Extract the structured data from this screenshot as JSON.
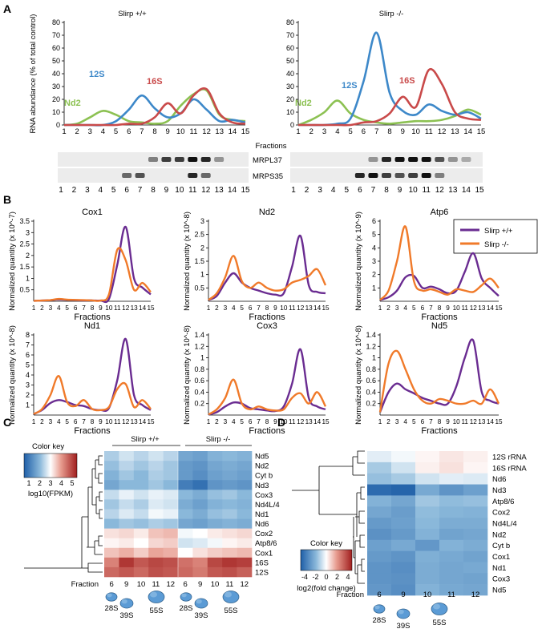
{
  "panel_letters": [
    "A",
    "B",
    "C",
    "D"
  ],
  "colors": {
    "wt_purple": "#6a2c91",
    "ko_orange": "#f07a2a",
    "nd2_green": "#8cc152",
    "s12_blue": "#3d88c9",
    "s16_red": "#c94a4a"
  },
  "panelA": {
    "charts": [
      {
        "title": "Slirp +/+",
        "ylabel": "RNA abundance (% of total control)",
        "xlabel": "Fractions",
        "peak_labels": {
          "nd2": "Nd2",
          "s12": "12S",
          "s16": "16S"
        }
      },
      {
        "title": "Slirp -/-",
        "xlabel": "Fractions",
        "peak_labels": {
          "nd2": "Nd2",
          "s12": "12S",
          "s16": "16S"
        }
      }
    ],
    "blot_labels": [
      "MRPL37",
      "MRPS35"
    ],
    "fraction_ticks": [
      "1",
      "2",
      "3",
      "4",
      "5",
      "6",
      "7",
      "8",
      "9",
      "10",
      "11",
      "12",
      "13",
      "14",
      "15"
    ]
  },
  "panelB": {
    "legend": {
      "wt": "Slirp +/+",
      "ko": "Slirp -/-"
    },
    "fractions_label": "Fractions",
    "ylabels": [
      "Normalized quantity (x 10^-7)",
      "Normalized quantity (x 10^-8)",
      "Normalized quantity (x 10^-9)",
      "Normalized quantity (x 10^-8)",
      "Normalized quantity (x 10^-8)",
      "Normalized quantity (x 10^-8)"
    ],
    "titles": [
      "Cox1",
      "Nd2",
      "Atp6",
      "Nd1",
      "Cox3",
      "Nd5"
    ]
  },
  "panelC": {
    "groups": [
      "Slirp +/+",
      "Slirp -/-"
    ],
    "key_title": "Color key",
    "key_axis": "log10(FPKM)",
    "key_ticks": [
      "1",
      "2",
      "3",
      "4",
      "5"
    ],
    "rows": [
      "Nd5",
      "Nd2",
      "Cyt b",
      "Nd3",
      "Cox3",
      "Nd4L/4",
      "Nd1",
      "Nd6",
      "Cox2",
      "Atp8/6",
      "Cox1",
      "16S",
      "12S"
    ],
    "fraction_label": "Fraction",
    "fractions": [
      "6",
      "9",
      "10",
      "11",
      "12",
      "6",
      "9",
      "10",
      "11",
      "12"
    ],
    "ribosomes": [
      "28S",
      "39S",
      "55S",
      "28S",
      "39S",
      "55S"
    ]
  },
  "panelD": {
    "key_title": "Color key",
    "key_axis": "log2(fold change)",
    "key_ticks": [
      "-4",
      "-2",
      "0",
      "2",
      "4"
    ],
    "rows": [
      "12S rRNA",
      "16S rRNA",
      "Nd6",
      "Nd3",
      "Atp8/6",
      "Cox2",
      "Nd4L/4",
      "Nd2",
      "Cyt b",
      "Cox1",
      "Nd1",
      "Cox3",
      "Nd5"
    ],
    "fraction_label": "Fraction",
    "fractions": [
      "6",
      "9",
      "10",
      "11",
      "12"
    ],
    "ribosomes": [
      "28S",
      "39S",
      "55S"
    ]
  },
  "chart_data": [
    {
      "type": "line",
      "title": "Slirp +/+",
      "ylabel": "RNA abundance (% of total control)",
      "xlabel": "Fractions",
      "ylim": [
        0,
        80
      ],
      "yticks": [
        0,
        10,
        20,
        30,
        40,
        50,
        60,
        70,
        80
      ],
      "x": [
        1,
        2,
        3,
        4,
        5,
        6,
        7,
        8,
        9,
        10,
        11,
        12,
        13,
        14,
        15
      ],
      "series": [
        {
          "name": "Nd2",
          "values": [
            0,
            1,
            6,
            11,
            8,
            3,
            2,
            1,
            3,
            15,
            24,
            27,
            8,
            4,
            3
          ]
        },
        {
          "name": "12S",
          "values": [
            0,
            0,
            0,
            0,
            3,
            12,
            23,
            13,
            6,
            9,
            20,
            12,
            3,
            4,
            2
          ]
        },
        {
          "name": "16S",
          "values": [
            0,
            0,
            0,
            0,
            0,
            1,
            1,
            6,
            17,
            9,
            23,
            28,
            9,
            2,
            1
          ]
        }
      ]
    },
    {
      "type": "line",
      "title": "Slirp -/-",
      "xlabel": "Fractions",
      "ylim": [
        0,
        80
      ],
      "yticks": [
        0,
        10,
        20,
        30,
        40,
        50,
        60,
        70,
        80
      ],
      "x": [
        1,
        2,
        3,
        4,
        5,
        6,
        7,
        8,
        9,
        10,
        11,
        12,
        13,
        14,
        15
      ],
      "series": [
        {
          "name": "Nd2",
          "values": [
            0,
            4,
            10,
            19,
            9,
            4,
            2,
            1,
            2,
            3,
            3,
            4,
            7,
            12,
            8
          ]
        },
        {
          "name": "12S",
          "values": [
            0,
            0,
            0,
            1,
            5,
            34,
            72,
            25,
            11,
            8,
            16,
            11,
            8,
            10,
            5
          ]
        },
        {
          "name": "16S",
          "values": [
            0,
            0,
            0,
            0,
            0,
            2,
            3,
            9,
            22,
            14,
            43,
            32,
            10,
            5,
            4
          ]
        }
      ]
    },
    {
      "type": "line",
      "title": "Cox1",
      "ylabel": "Normalized quantity (x 10^-7)",
      "xlabel": "Fractions",
      "ylim": [
        0,
        3.5
      ],
      "yticks": [
        0.5,
        1,
        1.5,
        2,
        2.5,
        3,
        3.5
      ],
      "x": [
        1,
        2,
        3,
        4,
        5,
        6,
        7,
        8,
        9,
        10,
        11,
        12,
        13,
        14,
        15
      ],
      "series": [
        {
          "name": "Slirp +/+",
          "values": [
            0.02,
            0.03,
            0.05,
            0.08,
            0.06,
            0.05,
            0.04,
            0.04,
            0.03,
            0.1,
            1.6,
            3.25,
            1.0,
            0.6,
            0.3
          ]
        },
        {
          "name": "Slirp -/-",
          "values": [
            0.02,
            0.03,
            0.05,
            0.1,
            0.07,
            0.06,
            0.05,
            0.04,
            0.03,
            0.3,
            2.25,
            1.8,
            0.5,
            0.8,
            0.4
          ]
        }
      ]
    },
    {
      "type": "line",
      "title": "Nd2",
      "ylabel": "Normalized quantity (x 10^-8)",
      "xlabel": "Fractions",
      "ylim": [
        0,
        3
      ],
      "yticks": [
        0.5,
        1,
        1.5,
        2,
        2.5,
        3
      ],
      "x": [
        1,
        2,
        3,
        4,
        5,
        6,
        7,
        8,
        9,
        10,
        11,
        12,
        13,
        14,
        15
      ],
      "series": [
        {
          "name": "Slirp +/+",
          "values": [
            0.05,
            0.2,
            0.7,
            1.05,
            0.7,
            0.5,
            0.4,
            0.3,
            0.25,
            0.3,
            1.3,
            2.45,
            0.6,
            0.35,
            0.3
          ]
        },
        {
          "name": "Slirp -/-",
          "values": [
            0.05,
            0.3,
            0.9,
            1.7,
            0.75,
            0.5,
            0.7,
            0.5,
            0.4,
            0.45,
            0.7,
            0.8,
            0.95,
            1.2,
            0.6
          ]
        }
      ]
    },
    {
      "type": "line",
      "title": "Atp6",
      "ylabel": "Normalized quantity (x 10^-9)",
      "xlabel": "Fractions",
      "ylim": [
        0,
        6
      ],
      "yticks": [
        1,
        2,
        3,
        4,
        5,
        6
      ],
      "x": [
        1,
        2,
        3,
        4,
        5,
        6,
        7,
        8,
        9,
        10,
        11,
        12,
        13,
        14,
        15
      ],
      "series": [
        {
          "name": "Slirp +/+",
          "values": [
            0.1,
            0.3,
            0.8,
            1.8,
            1.9,
            1.0,
            1.1,
            0.9,
            0.6,
            0.8,
            2.2,
            3.6,
            1.7,
            1.0,
            0.4
          ]
        },
        {
          "name": "Slirp -/-",
          "values": [
            0.1,
            0.8,
            3.0,
            5.6,
            1.5,
            0.8,
            0.9,
            0.7,
            0.5,
            0.9,
            0.8,
            0.7,
            1.2,
            1.7,
            1.0
          ]
        }
      ]
    },
    {
      "type": "line",
      "title": "Nd1",
      "ylabel": "Normalized quantity (x 10^-8)",
      "xlabel": "Fractions",
      "ylim": [
        0,
        8
      ],
      "yticks": [
        1,
        2,
        3,
        4,
        5,
        6,
        7,
        8
      ],
      "x": [
        1,
        2,
        3,
        4,
        5,
        6,
        7,
        8,
        9,
        10,
        11,
        12,
        13,
        14,
        15
      ],
      "series": [
        {
          "name": "Slirp +/+",
          "values": [
            0.1,
            0.5,
            1.2,
            1.5,
            1.3,
            1.0,
            0.9,
            0.6,
            0.5,
            0.7,
            3.5,
            7.6,
            2.0,
            1.0,
            0.5
          ]
        },
        {
          "name": "Slirp -/-",
          "values": [
            0.1,
            0.6,
            2.0,
            3.9,
            1.3,
            0.9,
            1.5,
            0.6,
            0.5,
            0.8,
            2.6,
            3.1,
            0.8,
            1.5,
            0.6
          ]
        }
      ]
    },
    {
      "type": "line",
      "title": "Cox3",
      "ylabel": "Normalized quantity (x 10^-8)",
      "xlabel": "Fractions",
      "ylim": [
        0,
        1.4
      ],
      "yticks": [
        0.2,
        0.4,
        0.6,
        0.8,
        1.0,
        1.2,
        1.4
      ],
      "x": [
        1,
        2,
        3,
        4,
        5,
        6,
        7,
        8,
        9,
        10,
        11,
        12,
        13,
        14,
        15
      ],
      "series": [
        {
          "name": "Slirp +/+",
          "values": [
            0.01,
            0.05,
            0.15,
            0.22,
            0.2,
            0.12,
            0.1,
            0.08,
            0.07,
            0.15,
            0.55,
            1.15,
            0.3,
            0.15,
            0.1
          ]
        },
        {
          "name": "Slirp -/-",
          "values": [
            0.01,
            0.1,
            0.3,
            0.62,
            0.2,
            0.1,
            0.15,
            0.1,
            0.08,
            0.1,
            0.3,
            0.38,
            0.2,
            0.4,
            0.15
          ]
        }
      ]
    },
    {
      "type": "line",
      "title": "Nd5",
      "ylabel": "Normalized quantity (x 10^-8)",
      "xlabel": "Fractions",
      "ylim": [
        0,
        1.4
      ],
      "yticks": [
        0.2,
        0.4,
        0.6,
        0.8,
        1.0,
        1.2,
        1.4
      ],
      "x": [
        1,
        2,
        3,
        4,
        5,
        6,
        7,
        8,
        9,
        10,
        11,
        12,
        13,
        14,
        15
      ],
      "series": [
        {
          "name": "Slirp +/+",
          "values": [
            0.05,
            0.4,
            0.55,
            0.45,
            0.38,
            0.3,
            0.25,
            0.2,
            0.2,
            0.5,
            1.0,
            1.3,
            0.4,
            0.25,
            0.2
          ]
        },
        {
          "name": "Slirp -/-",
          "values": [
            0.05,
            0.9,
            1.12,
            0.8,
            0.45,
            0.25,
            0.2,
            0.28,
            0.25,
            0.2,
            0.2,
            0.25,
            0.2,
            0.45,
            0.2
          ]
        }
      ]
    },
    {
      "type": "heatmap",
      "title": "",
      "rows": [
        "Nd5",
        "Nd2",
        "Cyt b",
        "Nd3",
        "Cox3",
        "Nd4L/4",
        "Nd1",
        "Nd6",
        "Cox2",
        "Atp8/6",
        "Cox1",
        "16S",
        "12S"
      ],
      "columns": [
        "6",
        "9",
        "10",
        "11",
        "12",
        "6",
        "9",
        "10",
        "11",
        "12"
      ],
      "colorscale_label": "log10(FPKM)",
      "vrange": [
        0.5,
        5.5
      ],
      "values": [
        [
          2.3,
          2.6,
          2.4,
          2.6,
          2.4,
          1.7,
          1.6,
          1.9,
          2.0,
          1.9
        ],
        [
          2.1,
          2.4,
          2.2,
          2.4,
          2.2,
          1.5,
          1.4,
          1.7,
          1.8,
          1.7
        ],
        [
          1.9,
          2.2,
          2.0,
          2.3,
          2.2,
          1.5,
          1.3,
          1.6,
          1.7,
          1.6
        ],
        [
          1.7,
          2.0,
          2.0,
          2.2,
          2.0,
          1.0,
          0.8,
          1.4,
          1.5,
          1.4
        ],
        [
          2.5,
          2.8,
          2.6,
          2.8,
          2.7,
          2.0,
          1.8,
          2.1,
          2.2,
          2.0
        ],
        [
          2.2,
          2.5,
          2.3,
          2.7,
          2.6,
          1.8,
          1.6,
          1.9,
          2.0,
          1.9
        ],
        [
          2.4,
          2.7,
          2.5,
          2.9,
          2.8,
          2.0,
          1.8,
          2.1,
          2.2,
          2.0
        ],
        [
          2.0,
          2.2,
          2.1,
          2.3,
          2.2,
          1.7,
          1.6,
          1.8,
          1.9,
          1.8
        ],
        [
          3.3,
          3.4,
          3.2,
          3.6,
          3.7,
          2.9,
          3.0,
          3.2,
          3.3,
          3.4
        ],
        [
          3.1,
          3.2,
          3.0,
          3.4,
          3.5,
          2.6,
          2.7,
          2.9,
          3.1,
          3.2
        ],
        [
          3.6,
          3.8,
          3.5,
          3.9,
          3.8,
          3.0,
          3.3,
          3.5,
          3.6,
          3.7
        ],
        [
          4.3,
          5.2,
          4.8,
          5.0,
          4.9,
          4.5,
          4.3,
          5.0,
          5.2,
          5.1
        ],
        [
          4.6,
          4.8,
          4.6,
          4.9,
          4.8,
          4.6,
          4.4,
          4.8,
          4.9,
          4.7
        ]
      ]
    },
    {
      "type": "heatmap",
      "title": "",
      "rows": [
        "12S rRNA",
        "16S rRNA",
        "Nd6",
        "Nd3",
        "Atp8/6",
        "Cox2",
        "Nd4L/4",
        "Nd2",
        "Cyt b",
        "Cox1",
        "Nd1",
        "Cox3",
        "Nd5"
      ],
      "columns": [
        "6",
        "9",
        "10",
        "11",
        "12"
      ],
      "colorscale_label": "log2(fold change)",
      "vrange": [
        -5,
        5
      ],
      "values": [
        [
          -0.5,
          -0.2,
          0.2,
          0.5,
          0.3
        ],
        [
          -1.5,
          -0.8,
          0.3,
          0.6,
          0.2
        ],
        [
          -1.8,
          -1.5,
          -0.8,
          -0.5,
          -0.6
        ],
        [
          -4.6,
          -4.8,
          -2.5,
          -3.2,
          -2.8
        ],
        [
          -2.2,
          -2.6,
          -1.6,
          -1.9,
          -1.8
        ],
        [
          -2.6,
          -2.9,
          -1.9,
          -2.1,
          -2.2
        ],
        [
          -3.0,
          -2.8,
          -2.0,
          -2.4,
          -2.4
        ],
        [
          -3.3,
          -3.0,
          -2.2,
          -2.7,
          -2.6
        ],
        [
          -2.8,
          -2.5,
          -3.1,
          -2.2,
          -2.4
        ],
        [
          -3.0,
          -3.2,
          -2.3,
          -2.5,
          -2.7
        ],
        [
          -3.2,
          -3.4,
          -2.4,
          -2.6,
          -2.5
        ],
        [
          -3.2,
          -3.3,
          -2.4,
          -2.6,
          -2.7
        ],
        [
          -3.1,
          -3.4,
          -2.2,
          -2.5,
          -2.6
        ]
      ]
    }
  ]
}
